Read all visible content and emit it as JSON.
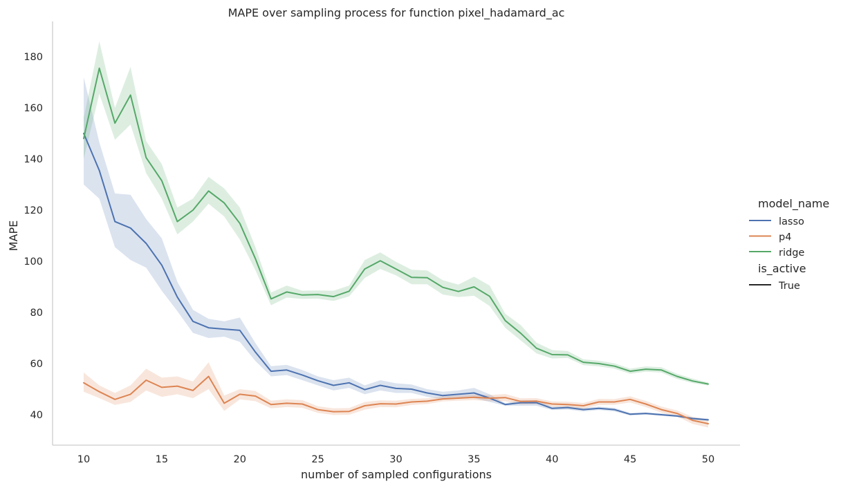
{
  "chart_data": {
    "type": "line",
    "title": "MAPE over sampling process for function pixel_hadamard_ac",
    "xlabel": "number of sampled configurations",
    "ylabel": "MAPE",
    "xlim": [
      8,
      52
    ],
    "ylim": [
      28,
      192
    ],
    "xticks": [
      10,
      15,
      20,
      25,
      30,
      35,
      40,
      45,
      50
    ],
    "yticks": [
      40,
      60,
      80,
      100,
      120,
      140,
      160,
      180
    ],
    "grid": false,
    "legend": {
      "position": "right",
      "title": "model_name",
      "entries": [
        "lasso",
        "p4",
        "ridge"
      ],
      "style_title": "is_active",
      "style_entries": [
        "True"
      ]
    },
    "x": [
      10,
      11,
      12,
      13,
      14,
      15,
      16,
      17,
      18,
      19,
      20,
      21,
      22,
      23,
      24,
      25,
      26,
      27,
      28,
      29,
      30,
      31,
      32,
      33,
      34,
      35,
      36,
      37,
      38,
      39,
      40,
      41,
      42,
      43,
      44,
      45,
      46,
      47,
      48,
      49,
      50
    ],
    "series": [
      {
        "name": "lasso",
        "color": "#4c72b0",
        "values": [
          150,
          135.5,
          115.5,
          113,
          107,
          98.5,
          86,
          76.5,
          74,
          73.5,
          73,
          64.5,
          57,
          57.5,
          55.5,
          53.3,
          51.5,
          52.5,
          49.8,
          51.5,
          50.3,
          50,
          48.5,
          47.5,
          48,
          48.5,
          46.5,
          44,
          44.7,
          44.7,
          42.5,
          42.8,
          42,
          42.5,
          42,
          40.2,
          40.5,
          40,
          39.5,
          38.5,
          38
        ],
        "lower": [
          130,
          124.5,
          105.5,
          100.5,
          97.5,
          88.5,
          80.5,
          72,
          70,
          70.5,
          68.5,
          61,
          55,
          55.5,
          53.5,
          51.5,
          49.5,
          50.5,
          48,
          49.5,
          48.5,
          48.5,
          47,
          46,
          46.5,
          46.5,
          45,
          43.5,
          43.5,
          43.5,
          41.8,
          42,
          41.3,
          41.8,
          41.3,
          39.7,
          40,
          39.6,
          39.1,
          38.1,
          37.6
        ],
        "upper": [
          172,
          146.5,
          126.5,
          126,
          116.5,
          109,
          92,
          81,
          77.5,
          76.5,
          78,
          68,
          59,
          59.5,
          57.5,
          55,
          53.5,
          54.5,
          51.5,
          53.5,
          52.3,
          51.8,
          50,
          49,
          49.5,
          50.5,
          48,
          44.5,
          45.7,
          45.7,
          43.2,
          43.5,
          42.7,
          43.2,
          42.7,
          40.7,
          40.9,
          40.5,
          39.9,
          39,
          38.5
        ]
      },
      {
        "name": "p4",
        "color": "#dd8452",
        "values": [
          52.5,
          49,
          46,
          48,
          53.5,
          50.7,
          51.2,
          49.5,
          55,
          44.5,
          48,
          47.3,
          44,
          44.5,
          44.2,
          42,
          41.2,
          41.3,
          43.5,
          44.3,
          44.2,
          45,
          45.3,
          46.2,
          46.5,
          46.8,
          46.5,
          46.7,
          45.2,
          45.3,
          44.2,
          44,
          43.5,
          45,
          45,
          46,
          44.2,
          42,
          40.5,
          37.8,
          36.5
        ],
        "lower": [
          49,
          46.5,
          43.8,
          45,
          49.5,
          47,
          48,
          46.5,
          50,
          41.5,
          46,
          45.3,
          42.5,
          43,
          42.7,
          40.7,
          39.9,
          40,
          42,
          43,
          42.9,
          43.8,
          44.2,
          45.2,
          45.5,
          45.7,
          45.3,
          45.3,
          44,
          44.1,
          43.2,
          42.9,
          42.4,
          43.8,
          43.9,
          44.8,
          43,
          40.8,
          39.3,
          36.4,
          35
        ],
        "upper": [
          56.5,
          51.5,
          48.5,
          51.5,
          58,
          54.5,
          55,
          53,
          60.5,
          47.5,
          50,
          49.3,
          45.5,
          46,
          45.7,
          43.3,
          42.5,
          42.6,
          45,
          45.6,
          45.5,
          46.2,
          46.4,
          47.2,
          47.5,
          47.9,
          47.7,
          48.1,
          46.4,
          46.5,
          45.2,
          45.1,
          44.6,
          46.2,
          46.1,
          47.2,
          45.4,
          43.2,
          41.7,
          39.2,
          38
        ]
      },
      {
        "name": "ridge",
        "color": "#55a868",
        "values": [
          148,
          175.5,
          154,
          165,
          140.5,
          131.5,
          115.5,
          120,
          127.5,
          122.8,
          114.8,
          101,
          85.3,
          88,
          86.8,
          87,
          86.2,
          88.3,
          97,
          100.2,
          97,
          93.7,
          93.6,
          89.8,
          88.2,
          90,
          86.3,
          76.8,
          71.8,
          66,
          63.5,
          63.4,
          60.5,
          60,
          59,
          57,
          57.8,
          57.5,
          55,
          53.2,
          52
        ],
        "lower": [
          140,
          165.5,
          147.5,
          153.5,
          134.5,
          124.5,
          110.5,
          115.5,
          122.5,
          117.5,
          108.5,
          96.5,
          82.8,
          85.8,
          85.3,
          85.4,
          84.5,
          86.3,
          93.5,
          97,
          94.5,
          91,
          91,
          87,
          86,
          86.5,
          82.5,
          74,
          69,
          64,
          62,
          62.2,
          59.4,
          58.9,
          58,
          56,
          56.8,
          56.5,
          54,
          52.4,
          51.4
        ],
        "upper": [
          156,
          186,
          160,
          176,
          147,
          138,
          121,
          124.5,
          133,
          128.5,
          121,
          105.5,
          87.8,
          90.5,
          88.5,
          88.6,
          88.5,
          90.5,
          100.5,
          103.5,
          99.8,
          96.7,
          96.4,
          92.6,
          90.9,
          94,
          90.5,
          79.5,
          75,
          68.2,
          65.3,
          64.9,
          61.7,
          61.1,
          60.1,
          58,
          58.9,
          58.6,
          56,
          54.1,
          52.6
        ]
      }
    ]
  }
}
